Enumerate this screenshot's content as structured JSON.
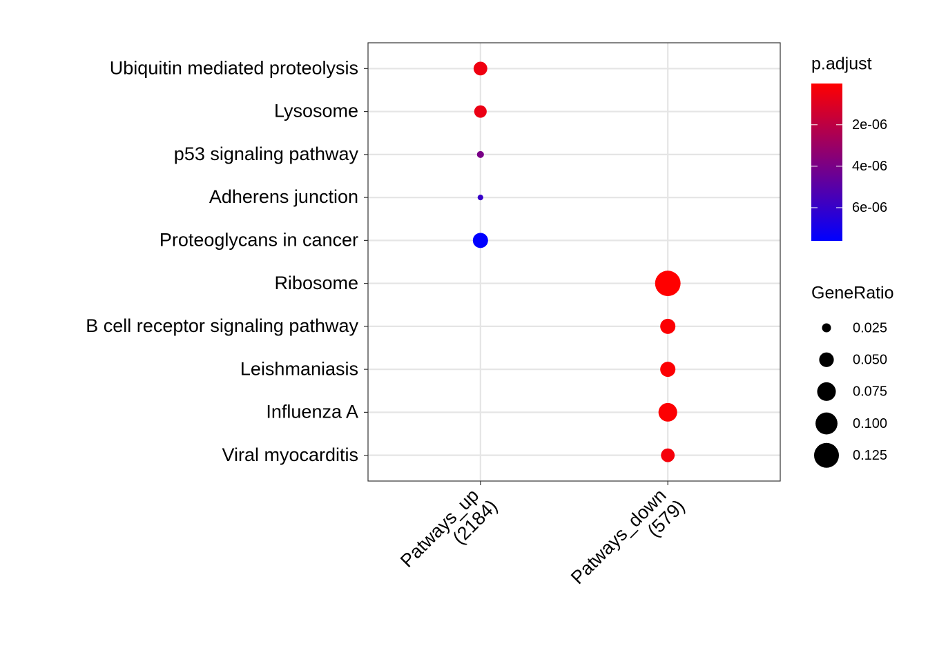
{
  "chart_data": {
    "type": "dotplot",
    "x_categories": [
      [
        "Patways_up",
        "(2184)"
      ],
      [
        "Patways_down",
        "(579)"
      ]
    ],
    "y_categories": [
      "Ubiquitin mediated proteolysis",
      "Lysosome",
      "p53 signaling pathway",
      "Adherens junction",
      "Proteoglycans in cancer",
      "Ribosome",
      "B cell receptor signaling pathway",
      "Leishmaniasis",
      "Influenza A",
      "Viral myocarditis"
    ],
    "gene_ratio": [
      [
        0.045,
        0.039,
        0.019,
        0.016,
        0.053,
        null,
        null,
        null,
        null,
        null
      ],
      [
        null,
        null,
        null,
        null,
        null,
        0.131,
        0.053,
        0.053,
        0.075,
        0.045
      ]
    ],
    "p_adjust": [
      [
        5e-07,
        6e-07,
        4e-06,
        6e-06,
        7.6e-06,
        null,
        null,
        null,
        null,
        null
      ],
      [
        null,
        null,
        null,
        null,
        null,
        1e-08,
        1e-07,
        1e-07,
        1e-07,
        3e-07
      ]
    ],
    "color_title": "p.adjust",
    "clim": [
      1e-08,
      7.6e-06
    ],
    "cticks": [
      {
        "value": 2e-06,
        "label": "2e-06"
      },
      {
        "value": 4e-06,
        "label": "4e-06"
      },
      {
        "value": 6e-06,
        "label": "6e-06"
      }
    ],
    "color_low": "#ff0000",
    "color_high": "#0000ff",
    "size_title": "GeneRatio",
    "size_ticks": [
      0.025,
      {
        "value": 0.05,
        "label": "0.050"
      },
      0.075,
      {
        "value": 0.1,
        "label": "0.100"
      },
      0.125
    ],
    "grid": true
  }
}
